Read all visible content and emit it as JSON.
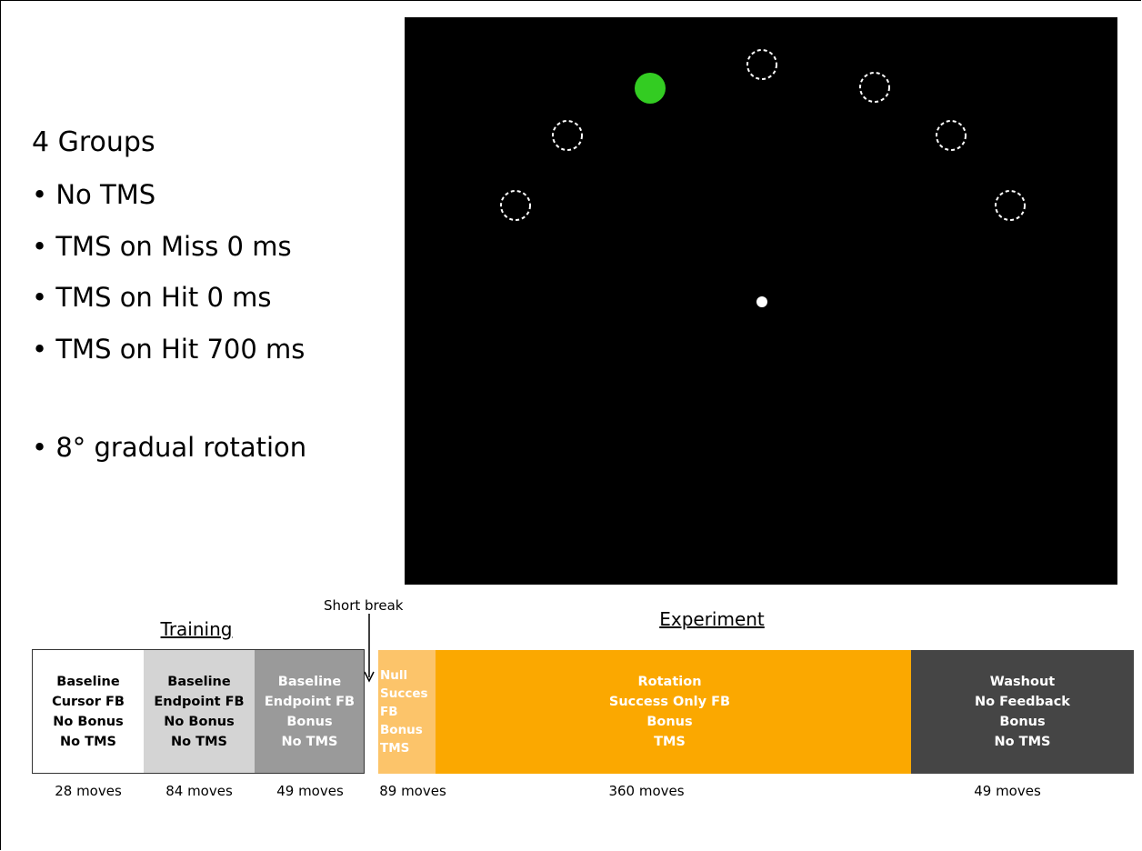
{
  "groups": {
    "title": "4 Groups",
    "bullets": [
      "No TMS",
      "TMS on Miss 0 ms",
      "TMS on Hit 0 ms",
      "TMS on Hit 700 ms"
    ],
    "note": "8° gradual rotation"
  },
  "timeline": {
    "training_label": "Training",
    "experiment_label": "Experiment",
    "short_break": "Short break",
    "blocks": [
      {
        "lines": [
          "Baseline",
          "Cursor FB",
          "No Bonus",
          "No TMS"
        ],
        "moves": "28 moves"
      },
      {
        "lines": [
          "Baseline",
          "Endpoint FB",
          "No Bonus",
          "No TMS"
        ],
        "moves": "84 moves"
      },
      {
        "lines": [
          "Baseline",
          "Endpoint FB",
          "Bonus",
          "No TMS"
        ],
        "moves": "49 moves"
      },
      {
        "lines": [
          "Null",
          "Succes",
          "FB",
          "Bonus",
          "TMS"
        ],
        "moves": "89 moves"
      },
      {
        "lines": [
          "Rotation",
          "Success Only FB",
          "Bonus",
          "TMS"
        ],
        "moves": "360 moves"
      },
      {
        "lines": [
          "Washout",
          "No Feedback",
          "Bonus",
          "No TMS"
        ],
        "moves": "49 moves"
      }
    ]
  }
}
